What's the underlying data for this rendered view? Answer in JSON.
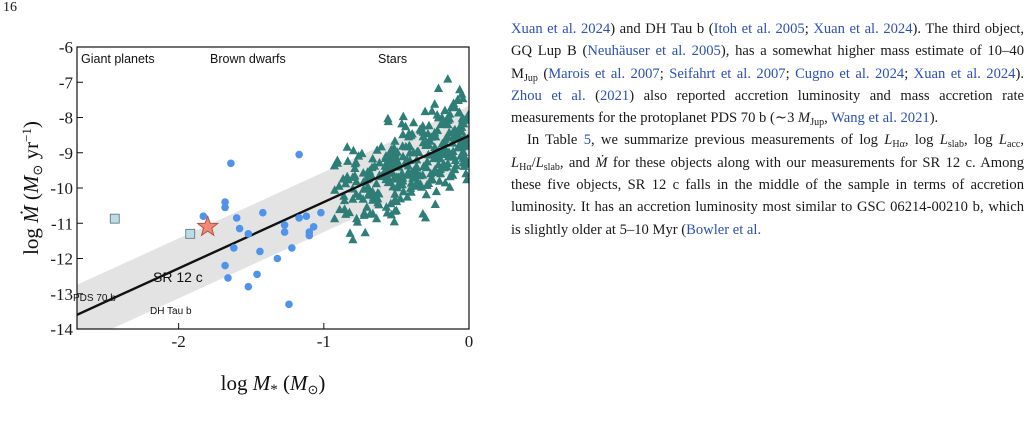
{
  "page_number": "16",
  "figure": {
    "regions": [
      "Giant planets",
      "Brown dwarfs",
      "Stars"
    ],
    "xlabel": "log M* (M⊙)",
    "ylabel": "log Ṁ (M⊙ yr⁻¹)",
    "annotations": {
      "sr12c": "SR 12 c",
      "pds70b": "PDS 70 b",
      "dhtaub": "DH Tau b"
    }
  },
  "chart_data": {
    "type": "scatter",
    "xlabel": "log M* (M⊙)",
    "ylabel": "log Ṁ (M⊙ yr⁻¹)",
    "xlim": [
      -2.7,
      0
    ],
    "ylim": [
      -14,
      -6
    ],
    "x_ticks": [
      -2,
      -1,
      0
    ],
    "y_ticks": [
      -6,
      -7,
      -8,
      -9,
      -10,
      -11,
      -12,
      -13,
      -14
    ],
    "grid": false,
    "fit_line": {
      "slope": 1.88,
      "intercept": -8.52
    },
    "band_halfwidth_dex": 0.85,
    "colors": {
      "stars": "#2e7d77",
      "brown_dwarfs": "#4f93ea",
      "sr12c": "#f08a78",
      "planets": "#b9dce6",
      "band": "#e3e3e3"
    },
    "series": [
      {
        "name": "Brown dwarfs",
        "marker": "circle",
        "points": [
          [
            -1.83,
            -10.8
          ],
          [
            -1.68,
            -10.4
          ],
          [
            -1.68,
            -10.55
          ],
          [
            -1.64,
            -9.3
          ],
          [
            -1.6,
            -10.85
          ],
          [
            -1.58,
            -11.15
          ],
          [
            -1.62,
            -11.7
          ],
          [
            -1.68,
            -12.2
          ],
          [
            -1.66,
            -12.55
          ],
          [
            -1.52,
            -12.8
          ],
          [
            -1.52,
            -11.3
          ],
          [
            -1.42,
            -10.7
          ],
          [
            -1.44,
            -11.8
          ],
          [
            -1.46,
            -12.45
          ],
          [
            -1.32,
            -12.0
          ],
          [
            -1.22,
            -11.7
          ],
          [
            -1.17,
            -9.05
          ],
          [
            -1.12,
            -10.8
          ],
          [
            -1.17,
            -10.85
          ],
          [
            -1.1,
            -11.25
          ],
          [
            -1.1,
            -11.35
          ],
          [
            -1.07,
            -11.1
          ],
          [
            -1.02,
            -10.7
          ],
          [
            -1.27,
            -11.05
          ],
          [
            -1.27,
            -11.25
          ],
          [
            -1.24,
            -13.3
          ]
        ]
      },
      {
        "name": "Stars",
        "marker": "triangle",
        "generated": {
          "count": 330,
          "x_range": [
            -0.94,
            0
          ],
          "y_center_slope": 1.88,
          "y_center_intercept": -8.5,
          "y_spread": 1.25
        }
      },
      {
        "name": "SR 12 c",
        "marker": "star",
        "points": [
          [
            -1.8,
            -11.1
          ]
        ]
      },
      {
        "name": "Planets",
        "marker": "square",
        "points": [
          [
            -2.44,
            -10.87
          ],
          [
            -1.92,
            -11.3
          ]
        ]
      }
    ]
  },
  "text": {
    "para1": "Xuan et al. 2024) and DH Tau b (Itoh et al. 2005; Xuan et al. 2024). The third object, GQ Lup B (Neuhäuser et al. 2005), has a somewhat higher mass estimate of 10–40 MJup (Marois et al. 2007; Seifahrt et al. 2007; Cugno et al. 2024; Xuan et al. 2024). Zhou et al. (2021) also reported accretion luminosity and mass accretion rate measurements for the protoplanet PDS 70 b (∼3 MJup, Wang et al. 2021).",
    "para2": "In Table 5, we summarize previous measurements of log LHα, log Lslab, log Lacc, LHα/Lslab, and Ṁ for these objects along with our measurements for SR 12 c. Among these five objects, SR 12 c falls in the middle of the sample in terms of accretion luminosity. It has an accretion luminosity most similar to GSC 06214-00210 b, which is slightly older at 5–10 Myr (Bowler et al."
  }
}
